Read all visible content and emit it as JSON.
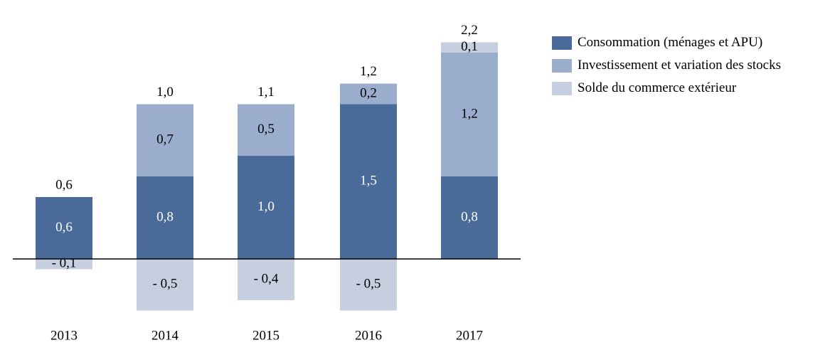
{
  "chart_data": {
    "type": "bar",
    "stacked": true,
    "categories": [
      "2013",
      "2014",
      "2015",
      "2016",
      "2017"
    ],
    "series": [
      {
        "name": "Consommation (ménages et APU)",
        "color": "#4a6a9a",
        "values": [
          0.6,
          0.8,
          1.0,
          1.5,
          0.8
        ],
        "labels": [
          "0,6",
          "0,8",
          "1,0",
          "1,5",
          "0,8"
        ]
      },
      {
        "name": "Investissement et variation des stocks",
        "color": "#9badcc",
        "values": [
          0,
          0.7,
          0.5,
          0.2,
          1.2
        ],
        "labels": [
          "",
          "0,7",
          "0,5",
          "0,2",
          "1,2"
        ]
      },
      {
        "name": "Solde du commerce extérieur",
        "color": "#c5cfe0",
        "values": [
          -0.1,
          -0.5,
          -0.4,
          -0.5,
          0.1
        ],
        "labels": [
          "- 0,1",
          "- 0,5",
          "- 0,4",
          "- 0,5",
          "0,1"
        ]
      }
    ],
    "totals": [
      0.6,
      1.0,
      1.1,
      1.2,
      2.2
    ],
    "total_labels": [
      "0,6",
      "1,0",
      "1,1",
      "1,2",
      "2,2"
    ],
    "ylim": [
      -0.55,
      2.3
    ],
    "title": "",
    "xlabel": "",
    "ylabel": "",
    "grid": false,
    "legend_position": "right"
  }
}
